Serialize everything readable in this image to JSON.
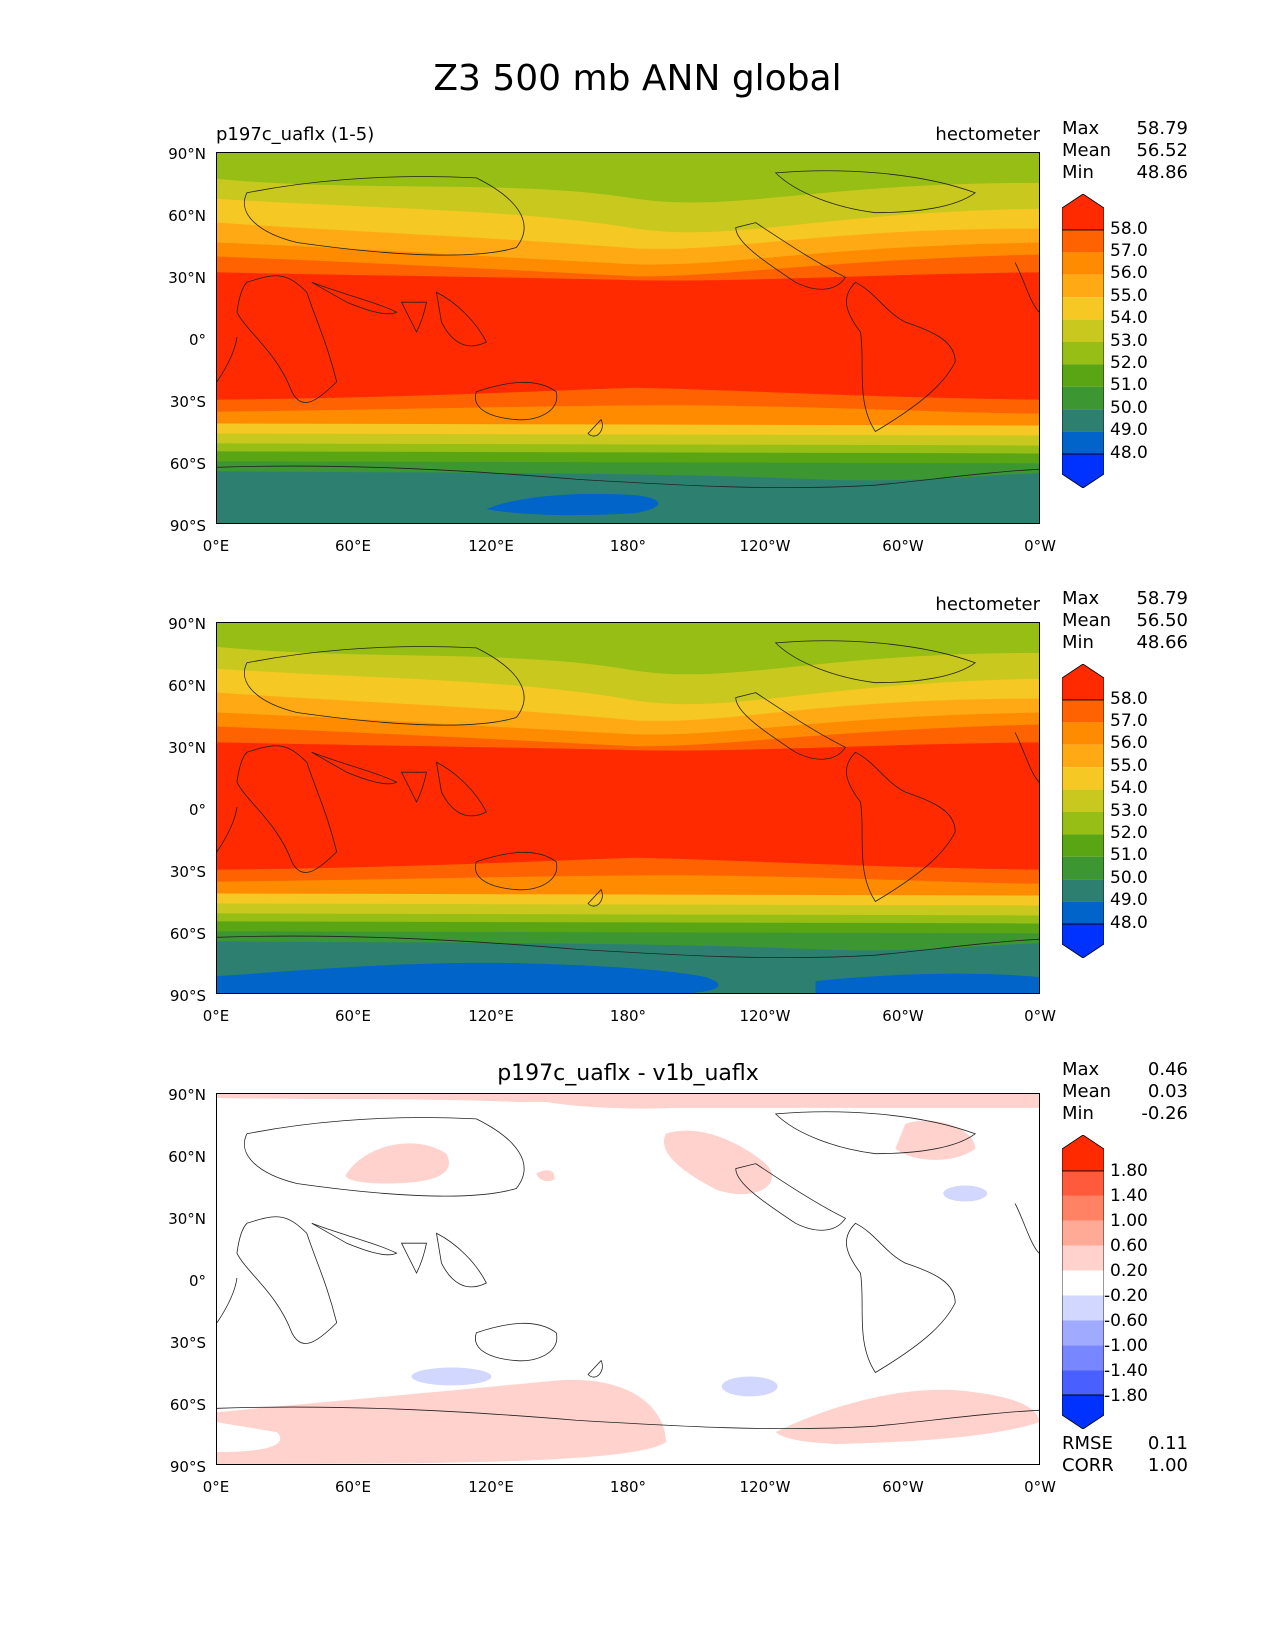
{
  "title": "Z3 500 mb ANN global",
  "lat_ticks": [
    "90°N",
    "60°N",
    "30°N",
    "0°",
    "30°S",
    "60°S",
    "90°S"
  ],
  "lon_ticks": [
    "0°E",
    "60°E",
    "120°E",
    "180°",
    "120°W",
    "60°W",
    "0°W"
  ],
  "stat_labels": {
    "max": "Max",
    "mean": "Mean",
    "min": "Min",
    "rmse": "RMSE",
    "corr": "CORR"
  },
  "abs_colorbar": {
    "labels": [
      "58.0",
      "57.0",
      "56.0",
      "55.0",
      "54.0",
      "53.0",
      "52.0",
      "51.0",
      "50.0",
      "49.0",
      "48.0"
    ],
    "colors": [
      "#ff2a00",
      "#ff6200",
      "#ff8c00",
      "#ffaa14",
      "#f5c823",
      "#c8c81e",
      "#96be14",
      "#5aa514",
      "#3c9632",
      "#2d8070",
      "#0064c8",
      "#0032ff"
    ]
  },
  "diff_colorbar": {
    "labels": [
      "1.80",
      "1.40",
      "1.00",
      "0.60",
      "0.20",
      "-0.20",
      "-0.60",
      "-1.00",
      "-1.40",
      "-1.80"
    ],
    "colors": [
      "#ff2a00",
      "#ff5a3c",
      "#ff8264",
      "#ffaa96",
      "#ffd2cd",
      "#ffffff",
      "#d2d7ff",
      "#a0aaff",
      "#7887ff",
      "#4a5fff",
      "#0032ff"
    ]
  },
  "panels": [
    {
      "subtitle": "p197c_uaflx (1-5)",
      "units": "hectometer",
      "max": "58.79",
      "mean": "56.52",
      "min": "48.86"
    },
    {
      "subtitle": "",
      "units": "hectometer",
      "max": "58.79",
      "mean": "56.50",
      "min": "48.66"
    },
    {
      "subtitle": "p197c_uaflx - v1b_uaflx",
      "units": "",
      "max": "0.46",
      "mean": "0.03",
      "min": "-0.26",
      "rmse": "0.11",
      "corr": "1.00"
    }
  ]
}
